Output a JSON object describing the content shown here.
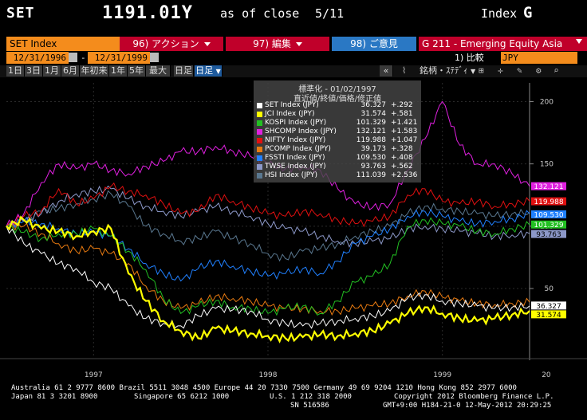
{
  "header": {
    "ticker": "SET",
    "price": "1191.01Y",
    "as_of": "as of close",
    "date": "5/11",
    "index_label": "Index",
    "index_key": "G"
  },
  "toolbar": {
    "security": "SET Index",
    "menu_actions": "96) アクション",
    "menu_edit": "97) 編集",
    "menu_feedback": "98) ご意見",
    "function": "G 211 - Emerging Equity Asia"
  },
  "range": {
    "start": "12/31/1996",
    "end": "12/31/1999",
    "compare_label": "1) 比較",
    "currency": "JPY"
  },
  "periods": [
    "1日",
    "3日",
    "1月",
    "6月",
    "年初来",
    "1年",
    "5年",
    "最大"
  ],
  "period_mode": "日足",
  "toolbar2": {
    "collapse": "«",
    "studies": "銘柄・ｽﾃﾃﾞｨ"
  },
  "legend": {
    "title": "標準化 - 01/02/1997",
    "subtitle": "直近値/終値/価格/修正値",
    "items": [
      {
        "name": "SET Index (JPY)",
        "last": "36.327",
        "change": "+.292",
        "color": "#ffffff"
      },
      {
        "name": "JCI Index (JPY)",
        "last": "31.574",
        "change": "+.581",
        "color": "#ffff00"
      },
      {
        "name": "KOSPI Index (JPY)",
        "last": "101.329",
        "change": "+1.421",
        "color": "#22c022"
      },
      {
        "name": "SHCOMP Index (JPY)",
        "last": "132.121",
        "change": "+1.583",
        "color": "#e020e0"
      },
      {
        "name": "NIFTY Index (JPY)",
        "last": "119.988",
        "change": "+1.047",
        "color": "#e01010"
      },
      {
        "name": "PCOMP Index (JPY)",
        "last": "39.173",
        "change": "+.328",
        "color": "#e87a10"
      },
      {
        "name": "FSSTI Index (JPY)",
        "last": "109.530",
        "change": "+.408",
        "color": "#2080ff"
      },
      {
        "name": "TWSE Index (JPY)",
        "last": "93.763",
        "change": "+.562",
        "color": "#8c98c8"
      },
      {
        "name": "HSI Index (JPY)",
        "last": "111.039",
        "change": "+2.536",
        "color": "#5a7890"
      }
    ]
  },
  "chart_data": {
    "type": "line",
    "x_labels": [
      "1997",
      "1998",
      "1999",
      "20"
    ],
    "y_ticks": [
      200,
      150,
      100,
      50
    ],
    "ylim": [
      -5,
      215
    ],
    "grid": true,
    "last_value_labels": [
      {
        "series": "SHCOMP Index (JPY)",
        "value": "132.121"
      },
      {
        "series": "NIFTY Index (JPY)",
        "value": "119.988"
      },
      {
        "series": "FSSTI Index (JPY)",
        "value": "109.530"
      },
      {
        "series": "KOSPI Index (JPY)",
        "value": "101.329"
      },
      {
        "series": "TWSE Index (JPY)",
        "value": "93.763"
      },
      {
        "series": "SET Index (JPY)",
        "value": "36.327"
      },
      {
        "series": "JCI Index (JPY)",
        "value": "31.574"
      }
    ],
    "x": [
      1997.0,
      1997.1,
      1997.2,
      1997.3,
      1997.4,
      1997.5,
      1997.6,
      1997.7,
      1997.8,
      1997.9,
      1998.0,
      1998.1,
      1998.2,
      1998.3,
      1998.4,
      1998.5,
      1998.6,
      1998.7,
      1998.8,
      1998.9,
      1999.0,
      1999.1,
      1999.2,
      1999.3,
      1999.4,
      1999.5,
      1999.6,
      1999.7,
      1999.8,
      1999.9,
      2000.0
    ],
    "series": [
      {
        "name": "SET Index (JPY)",
        "values": [
          100,
          86,
          78,
          70,
          66,
          55,
          50,
          36,
          26,
          22,
          20,
          28,
          34,
          33,
          32,
          25,
          22,
          20,
          22,
          24,
          26,
          28,
          32,
          42,
          45,
          40,
          38,
          36,
          34,
          35,
          36
        ]
      },
      {
        "name": "JCI Index (JPY)",
        "values": [
          100,
          105,
          98,
          96,
          92,
          96,
          98,
          62,
          40,
          24,
          16,
          10,
          18,
          16,
          14,
          12,
          10,
          11,
          13,
          12,
          14,
          16,
          22,
          30,
          35,
          30,
          26,
          24,
          26,
          29,
          32
        ]
      },
      {
        "name": "KOSPI Index (JPY)",
        "values": [
          100,
          95,
          90,
          94,
          94,
          98,
          92,
          80,
          65,
          42,
          30,
          36,
          40,
          35,
          34,
          30,
          34,
          36,
          30,
          40,
          55,
          60,
          70,
          100,
          105,
          102,
          100,
          96,
          94,
          98,
          101
        ]
      },
      {
        "name": "SHCOMP Index (JPY)",
        "values": [
          100,
          110,
          135,
          150,
          146,
          150,
          145,
          142,
          148,
          152,
          160,
          160,
          164,
          160,
          156,
          150,
          146,
          148,
          145,
          130,
          118,
          115,
          118,
          145,
          170,
          200,
          165,
          150,
          150,
          142,
          132
        ]
      },
      {
        "name": "NIFTY Index (JPY)",
        "values": [
          100,
          108,
          112,
          130,
          118,
          122,
          132,
          128,
          125,
          118,
          110,
          112,
          125,
          120,
          115,
          110,
          108,
          112,
          110,
          105,
          102,
          104,
          108,
          125,
          130,
          120,
          118,
          120,
          116,
          118,
          120
        ]
      },
      {
        "name": "PCOMP Index (JPY)",
        "values": [
          100,
          100,
          94,
          86,
          80,
          82,
          78,
          70,
          52,
          40,
          34,
          38,
          44,
          42,
          40,
          36,
          34,
          34,
          32,
          32,
          34,
          36,
          38,
          44,
          48,
          43,
          40,
          38,
          37,
          38,
          39
        ]
      },
      {
        "name": "FSSTI Index (JPY)",
        "values": [
          100,
          104,
          102,
          98,
          94,
          95,
          92,
          82,
          70,
          62,
          56,
          66,
          72,
          68,
          64,
          60,
          62,
          66,
          62,
          72,
          86,
          92,
          98,
          108,
          112,
          108,
          104,
          102,
          104,
          106,
          110
        ]
      },
      {
        "name": "TWSE Index (JPY)",
        "values": [
          100,
          104,
          110,
          120,
          126,
          128,
          130,
          122,
          116,
          112,
          108,
          112,
          116,
          112,
          108,
          102,
          98,
          96,
          92,
          88,
          86,
          88,
          90,
          98,
          100,
          98,
          96,
          94,
          92,
          93,
          94
        ]
      },
      {
        "name": "HSI Index (JPY)",
        "values": [
          100,
          104,
          112,
          114,
          118,
          122,
          126,
          116,
          100,
          94,
          88,
          90,
          96,
          90,
          86,
          78,
          74,
          80,
          82,
          86,
          92,
          96,
          100,
          110,
          116,
          114,
          112,
          110,
          108,
          110,
          111
        ]
      }
    ]
  },
  "footer": {
    "line1": "Australia 61 2 9777 8600 Brazil 5511 3048 4500 Europe 44 20 7330 7500 Germany 49 69 9204 1210 Hong Kong 852 2977 6000",
    "line2_left": "Japan 81 3 3201 8900",
    "line2_mid": "Singapore 65 6212 1000",
    "line2_us": "U.S. 1 212 318 2000",
    "line2_right": "Copyright 2012 Bloomberg Finance L.P.",
    "line3_sn": "SN 516586",
    "line3_right": "GMT+9:00 H184-21-0 12-May-2012 20:29:25"
  }
}
